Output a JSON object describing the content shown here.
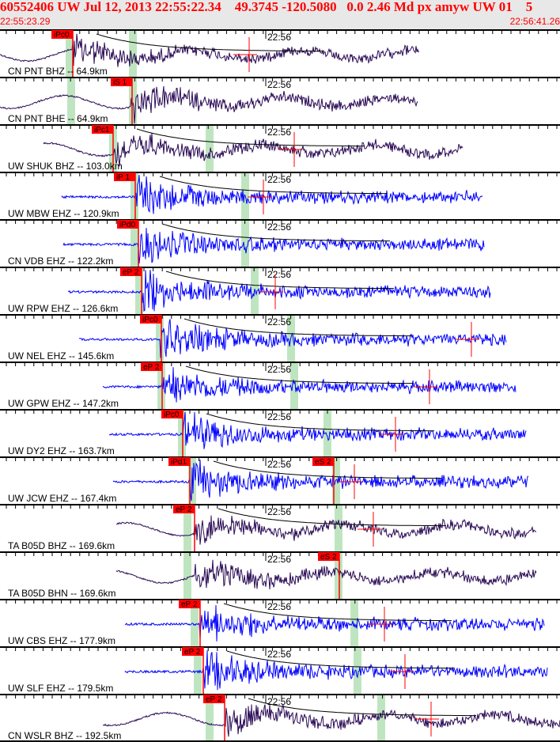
{
  "header": {
    "title": "60552406 UW Jul 12, 2013 22:55:22.34    49.3745 -120.5080   0.0 2.46 Md px amyw UW 01    5",
    "start_time": "22:55:23.29",
    "end_time": "22:56:41.26"
  },
  "minute_label": "22:56",
  "colors": {
    "broadband": "#2a0a55",
    "short_period": "#0000ff",
    "pick": "#ff0000",
    "window": "#bfe5c0"
  },
  "rows": [
    {
      "label": "CN PNT BHZ -- 64.9km",
      "type": "broadband",
      "picks": [
        "iPc0"
      ]
    },
    {
      "label": "CN PNT BHE -- 64.9km",
      "type": "broadband",
      "picks": [
        "iS 1"
      ]
    },
    {
      "label": "UW SHUK BHZ -- 103.0km",
      "type": "broadband",
      "picks": [
        "iPc1"
      ]
    },
    {
      "label": "UW MBW EHZ -- 120.9km",
      "type": "short_period",
      "picks": [
        "iP 1"
      ]
    },
    {
      "label": "CN VDB EHZ -- 122.2km",
      "type": "short_period",
      "picks": [
        "iPd0"
      ]
    },
    {
      "label": "UW RPW EHZ -- 126.6km",
      "type": "short_period",
      "picks": [
        "eP 2"
      ]
    },
    {
      "label": "UW NEL EHZ -- 145.6km",
      "type": "short_period",
      "picks": [
        "iPc0"
      ]
    },
    {
      "label": "UW GPW EHZ -- 147.2km",
      "type": "short_period",
      "picks": [
        "eP 2"
      ]
    },
    {
      "label": "UW DY2 EHZ -- 163.7km",
      "type": "short_period",
      "picks": [
        "iPc0"
      ]
    },
    {
      "label": "UW JCW EHZ -- 167.4km",
      "type": "short_period",
      "picks": [
        "iPd1",
        "eS 2"
      ]
    },
    {
      "label": "TA B05D BHZ -- 169.6km",
      "type": "broadband",
      "picks": [
        "eP 2"
      ]
    },
    {
      "label": "TA B05D BHN -- 169.6km",
      "type": "broadband",
      "picks": [
        "eS 2"
      ]
    },
    {
      "label": "UW CBS EHZ -- 177.9km",
      "type": "short_period",
      "picks": [
        "eP 2"
      ]
    },
    {
      "label": "UW SLF EHZ -- 179.5km",
      "type": "short_period",
      "picks": [
        "eP 2"
      ]
    },
    {
      "label": "CN WSLR BHZ -- 192.5km",
      "type": "broadband",
      "picks": [
        "eP 2"
      ]
    }
  ]
}
